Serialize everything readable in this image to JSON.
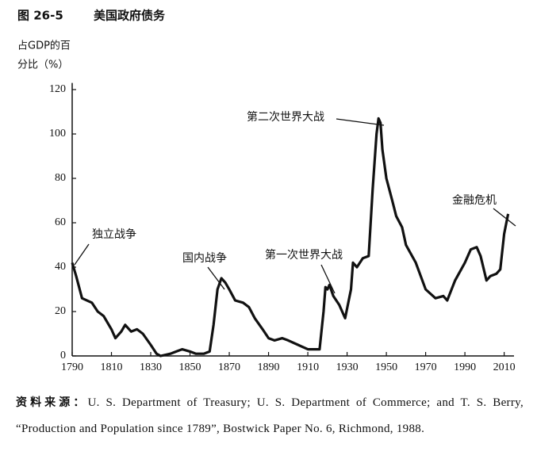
{
  "chart_data": {
    "type": "line",
    "figure_number": "图 26-5",
    "title": "美国政府债务",
    "ylabel_lines": [
      "占GDP的百",
      "分比（%）"
    ],
    "x": [
      1790,
      1792,
      1795,
      1800,
      1803,
      1806,
      1810,
      1812,
      1815,
      1817,
      1820,
      1823,
      1826,
      1830,
      1833,
      1835,
      1840,
      1843,
      1846,
      1850,
      1853,
      1857,
      1860,
      1862,
      1864,
      1866,
      1868,
      1870,
      1873,
      1877,
      1880,
      1883,
      1887,
      1890,
      1893,
      1897,
      1900,
      1905,
      1910,
      1916,
      1918,
      1919,
      1920,
      1921,
      1923,
      1926,
      1929,
      1932,
      1933,
      1935,
      1938,
      1941,
      1943,
      1945,
      1946,
      1947,
      1948,
      1950,
      1953,
      1955,
      1958,
      1960,
      1965,
      1970,
      1975,
      1979,
      1981,
      1985,
      1990,
      1993,
      1996,
      1998,
      2001,
      2003,
      2006,
      2008,
      2010,
      2012
    ],
    "values": [
      42,
      36,
      26,
      24,
      20,
      18,
      12,
      8,
      11,
      14,
      11,
      12,
      10,
      5,
      1,
      0,
      1,
      2,
      3,
      2,
      1,
      1,
      2,
      14,
      30,
      35,
      33,
      30,
      25,
      24,
      22,
      17,
      12,
      8,
      7,
      8,
      7,
      5,
      3,
      3,
      20,
      31,
      30,
      32,
      27,
      23,
      17,
      30,
      42,
      40,
      44,
      45,
      75,
      100,
      107,
      105,
      93,
      80,
      70,
      63,
      58,
      50,
      42,
      30,
      26,
      27,
      25,
      34,
      42,
      48,
      49,
      45,
      34,
      36,
      37,
      39,
      55,
      64
    ],
    "color": "#111111",
    "xlim": [
      1790,
      2015
    ],
    "xticks": [
      1790,
      1810,
      1830,
      1850,
      1870,
      1890,
      1910,
      1930,
      1950,
      1970,
      1990,
      2010
    ],
    "ylim": [
      0,
      123
    ],
    "yticks": [
      0,
      20,
      40,
      60,
      80,
      100,
      120
    ],
    "annotations": [
      "独立战争",
      "国内战争",
      "第一次世界大战",
      "第二次世界大战",
      "金融危机"
    ],
    "source_label": "资料来源：",
    "source": "U. S. Department of Treasury; U. S. Department of Commerce; and T. S. Berry, “Production and Population since 1789”, Bostwick Paper No. 6, Richmond, 1988."
  }
}
